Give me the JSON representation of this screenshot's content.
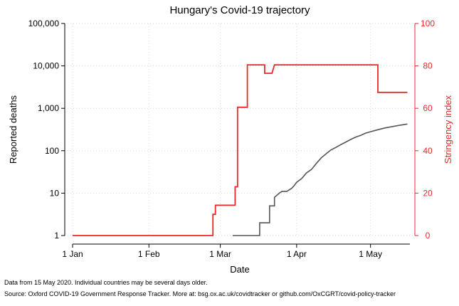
{
  "chart_data": {
    "type": "line",
    "title": "Hungary's Covid-19 trajectory",
    "xlabel": "Date",
    "x_ticks": [
      "1 Jan",
      "1 Feb",
      "1 Mar",
      "1 Apr",
      "1 May"
    ],
    "x_tick_days": [
      0,
      31,
      60,
      91,
      121
    ],
    "x_range_days": [
      0,
      137
    ],
    "y_left": {
      "label": "Reported deaths",
      "scale": "log",
      "range": [
        1,
        100000
      ],
      "ticks": [
        1,
        10,
        100,
        1000,
        10000,
        100000
      ],
      "tick_labels": [
        "1",
        "10",
        "100",
        "1,000",
        "10,000",
        "100,000"
      ]
    },
    "y_right": {
      "label": "Stringency index",
      "scale": "linear",
      "range": [
        0,
        100
      ],
      "ticks": [
        0,
        20,
        40,
        60,
        80,
        100
      ],
      "tick_labels": [
        "0",
        "20",
        "40",
        "60",
        "80",
        "100"
      ]
    },
    "grid": true,
    "series": [
      {
        "axis": "left",
        "color": "#555555",
        "points": [
          [
            65,
            1
          ],
          [
            76,
            1
          ],
          [
            76,
            2
          ],
          [
            80,
            2
          ],
          [
            80,
            5
          ],
          [
            82,
            5
          ],
          [
            82,
            8
          ],
          [
            84,
            10
          ],
          [
            85,
            11
          ],
          [
            87,
            11
          ],
          [
            89,
            13
          ],
          [
            90,
            15
          ],
          [
            91,
            18
          ],
          [
            93,
            22
          ],
          [
            95,
            30
          ],
          [
            97,
            36
          ],
          [
            99,
            50
          ],
          [
            101,
            68
          ],
          [
            103,
            85
          ],
          [
            105,
            105
          ],
          [
            107,
            120
          ],
          [
            109,
            140
          ],
          [
            111,
            160
          ],
          [
            113,
            185
          ],
          [
            115,
            210
          ],
          [
            117,
            230
          ],
          [
            119,
            260
          ],
          [
            121,
            280
          ],
          [
            124,
            312
          ],
          [
            127,
            345
          ],
          [
            130,
            372
          ],
          [
            133,
            400
          ],
          [
            136,
            425
          ]
        ]
      },
      {
        "axis": "right",
        "color": "#e8282b",
        "points": [
          [
            0,
            0
          ],
          [
            57,
            0
          ],
          [
            57,
            10
          ],
          [
            58,
            10
          ],
          [
            58,
            14.3
          ],
          [
            66,
            14.3
          ],
          [
            66,
            23
          ],
          [
            67,
            23
          ],
          [
            67,
            60.5
          ],
          [
            71,
            60.5
          ],
          [
            71,
            80.5
          ],
          [
            78,
            80.5
          ],
          [
            78,
            76.5
          ],
          [
            81,
            76.5
          ],
          [
            82,
            80.5
          ],
          [
            124,
            80.5
          ],
          [
            124,
            67.5
          ],
          [
            136,
            67.5
          ]
        ]
      }
    ]
  },
  "footnotes": {
    "line1": "Data from 15 May 2020. Individual countries may be several days older.",
    "line2": "Source: Oxford COVID-19 Government Response Tracker. More at: bsg.ox.ac.uk/covidtracker or github.com/OxCGRT/covid-policy-tracker"
  }
}
